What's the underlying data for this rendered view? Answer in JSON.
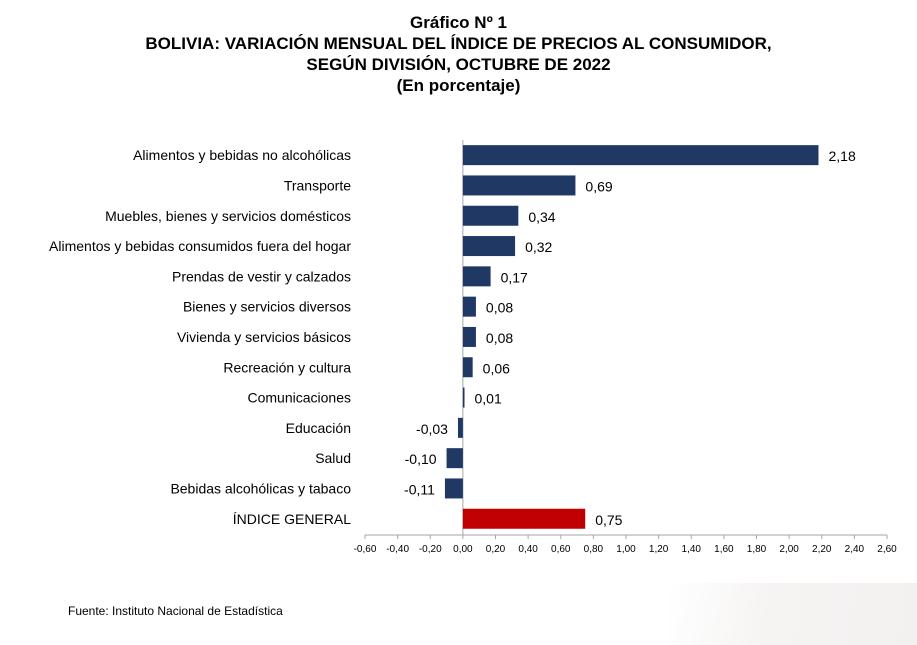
{
  "header": {
    "line1": "Gráfico Nº 1",
    "line2": "BOLIVIA: VARIACIÓN MENSUAL DEL ÍNDICE DE PRECIOS AL CONSUMIDOR,",
    "line3": "SEGÚN DIVISIÓN, OCTUBRE DE 2022",
    "line4": "(En porcentaje)"
  },
  "source": "Fuente: Instituto Nacional de Estadística",
  "colors": {
    "bar": "#1f3864",
    "highlight": "#c00000",
    "axis": "#a6a6a6"
  },
  "chart_data": {
    "type": "bar",
    "orientation": "horizontal",
    "title": "BOLIVIA: VARIACIÓN MENSUAL DEL ÍNDICE DE PRECIOS AL CONSUMIDOR, SEGÚN DIVISIÓN, OCTUBRE DE 2022",
    "subtitle": "(En porcentaje)",
    "categories": [
      "Alimentos y bebidas no alcohólicas",
      "Transporte",
      "Muebles, bienes y servicios domésticos",
      "Alimentos y bebidas consumidos fuera del hogar",
      "Prendas de vestir y calzados",
      "Bienes y servicios diversos",
      "Vivienda y servicios básicos",
      "Recreación y cultura",
      "Comunicaciones",
      "Educación",
      "Salud",
      "Bebidas alcohólicas y tabaco",
      "ÍNDICE GENERAL"
    ],
    "values": [
      2.18,
      0.69,
      0.34,
      0.32,
      0.17,
      0.08,
      0.08,
      0.06,
      0.01,
      -0.03,
      -0.1,
      -0.11,
      0.75
    ],
    "value_labels": [
      "2,18",
      "0,69",
      "0,34",
      "0,32",
      "0,17",
      "0,08",
      "0,08",
      "0,06",
      "0,01",
      "-0,03",
      "-0,10",
      "-0,11",
      "0,75"
    ],
    "highlight": [
      "ÍNDICE GENERAL"
    ],
    "xlim": [
      -0.6,
      2.6
    ],
    "xticks": [
      "-0,60",
      "-0,40",
      "-0,20",
      "0,00",
      "0,20",
      "0,40",
      "0,60",
      "0,80",
      "1,00",
      "1,20",
      "1,40",
      "1,60",
      "1,80",
      "2,00",
      "2,20",
      "2,40",
      "2,60"
    ],
    "grid": false,
    "legend": "none",
    "xlabel": "",
    "ylabel": ""
  }
}
